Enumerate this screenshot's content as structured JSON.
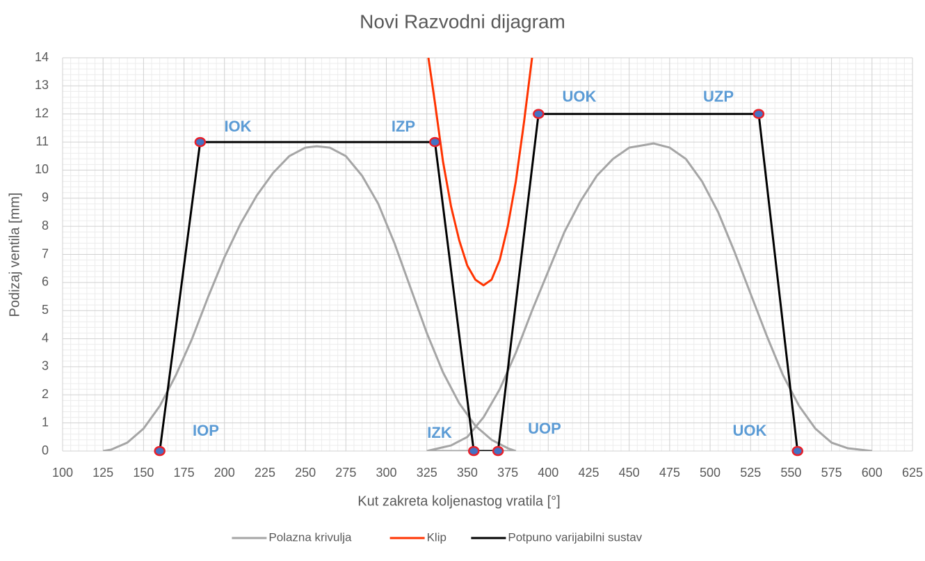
{
  "chart_data": {
    "type": "line",
    "title": "Novi Razvodni dijagram",
    "x_label": "Kut zakreta koljenastog vratila [°]",
    "y_label": "Podizaj ventila [mm]",
    "xlim": [
      100,
      625
    ],
    "xticks": [
      100,
      125,
      150,
      175,
      200,
      225,
      250,
      275,
      300,
      325,
      350,
      375,
      400,
      425,
      450,
      475,
      500,
      525,
      550,
      575,
      600,
      625
    ],
    "ylim": [
      0,
      14
    ],
    "yticks": [
      0,
      1,
      2,
      3,
      4,
      5,
      6,
      7,
      8,
      9,
      10,
      11,
      12,
      13,
      14
    ],
    "grid": true,
    "minor_grid": true,
    "legend": "bottom",
    "series": [
      {
        "name": "Polazna krivulja",
        "color": "#a5a5a5",
        "x": [
          125,
          130,
          140,
          150,
          160,
          170,
          180,
          190,
          200,
          210,
          220,
          230,
          240,
          250,
          257,
          265,
          275,
          285,
          295,
          305,
          315,
          325,
          335,
          345,
          355,
          365,
          375,
          380,
          null,
          325,
          340,
          350,
          360,
          370,
          380,
          390,
          400,
          410,
          420,
          430,
          440,
          450,
          465,
          475,
          485,
          495,
          505,
          515,
          525,
          535,
          545,
          555,
          565,
          575,
          585,
          600,
          null,
          325,
          380
        ],
        "values": [
          0,
          0.05,
          0.3,
          0.8,
          1.6,
          2.7,
          4.0,
          5.5,
          6.9,
          8.1,
          9.1,
          9.9,
          10.5,
          10.8,
          10.85,
          10.8,
          10.5,
          9.8,
          8.8,
          7.4,
          5.8,
          4.2,
          2.8,
          1.7,
          0.9,
          0.4,
          0.1,
          0,
          null,
          0,
          0.2,
          0.5,
          1.2,
          2.2,
          3.5,
          5.0,
          6.4,
          7.8,
          8.9,
          9.8,
          10.4,
          10.8,
          10.95,
          10.8,
          10.4,
          9.6,
          8.5,
          7.1,
          5.6,
          4.1,
          2.7,
          1.6,
          0.8,
          0.3,
          0.1,
          0,
          null,
          0,
          0
        ]
      },
      {
        "name": "Klip",
        "color": "#ff3300",
        "x": [
          326,
          330,
          335,
          340,
          345,
          350,
          355,
          360,
          365,
          370,
          375,
          380,
          385,
          390
        ],
        "values": [
          14,
          12.4,
          10.3,
          8.7,
          7.5,
          6.6,
          6.1,
          5.9,
          6.1,
          6.8,
          8.0,
          9.6,
          11.7,
          14
        ]
      },
      {
        "name": "Potpuno varijabilni sustav",
        "color": "#000000",
        "markers": true,
        "x": [
          160,
          185,
          330,
          354,
          369,
          394,
          530,
          554
        ],
        "values": [
          0,
          11,
          11,
          0,
          0,
          12,
          12,
          0
        ]
      }
    ],
    "annotations": [
      "IOP",
      "IOK",
      "IZP",
      "IZK",
      "UOP",
      "UOK",
      "UZP",
      "UOK"
    ]
  }
}
